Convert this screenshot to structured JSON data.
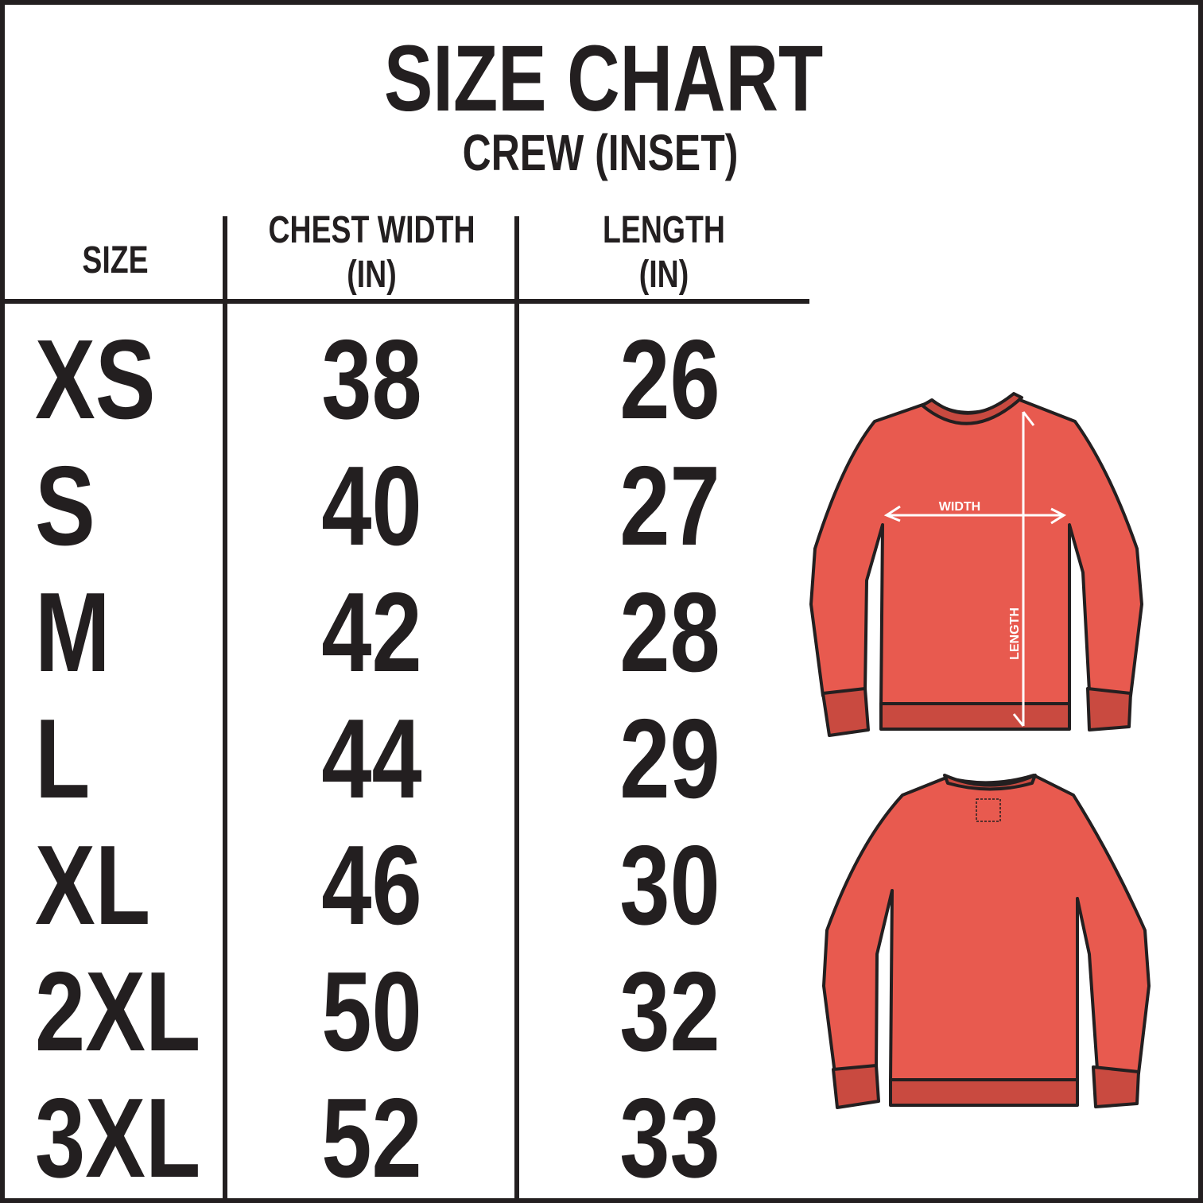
{
  "title": "SIZE CHART",
  "subtitle": "CREW (INSET)",
  "columns": [
    {
      "line1": "SIZE",
      "line2": ""
    },
    {
      "line1": "CHEST WIDTH",
      "line2": "(IN)"
    },
    {
      "line1": "LENGTH",
      "line2": "(IN)"
    }
  ],
  "rows": [
    {
      "size": "XS",
      "chest": "38",
      "length": "26"
    },
    {
      "size": "S",
      "chest": "40",
      "length": "27"
    },
    {
      "size": "M",
      "chest": "42",
      "length": "28"
    },
    {
      "size": "L",
      "chest": "44",
      "length": "29"
    },
    {
      "size": "XL",
      "chest": "46",
      "length": "30"
    },
    {
      "size": "2XL",
      "chest": "50",
      "length": "32"
    },
    {
      "size": "3XL",
      "chest": "52",
      "length": "33"
    }
  ],
  "illustration": {
    "width_label": "WIDTH",
    "length_label": "LENGTH",
    "garment_color": "#e85a4f",
    "rib_color": "#c94a40",
    "outline_color": "#231f20"
  }
}
